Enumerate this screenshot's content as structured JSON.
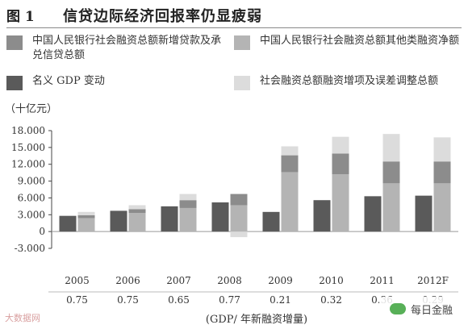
{
  "figure_label": "图 1",
  "title": "信贷边际经济回报率仍显疲弱",
  "unit_label": "（十亿元）",
  "watermark": "大数据网",
  "brand": {
    "text": "每日金融",
    "icon": "wechat-bubble-icon"
  },
  "colors": {
    "new_loans": "#8c8c8c",
    "other_net": "#b4b4b4",
    "gdp_change": "#5a5a5a",
    "adjustment": "#dcdcdc"
  },
  "chart_data": {
    "type": "bar",
    "title": "信贷边际经济回报率仍显疲弱",
    "ylabel": "（十亿元）",
    "xlabel": "(GDP/ 年新融资增量)",
    "ylim": [
      -3000,
      18000
    ],
    "yticks": [
      "-3.000",
      "0",
      "3.000",
      "6.000",
      "9.000",
      "12.000",
      "15.000",
      "18.000"
    ],
    "grid": false,
    "legend_placement": "top",
    "categories": [
      "2005",
      "2006",
      "2007",
      "2008",
      "2009",
      "2010",
      "2011",
      "2012F"
    ],
    "ratios": [
      "0.75",
      "0.75",
      "0.65",
      "0.77",
      "0.21",
      "0.32",
      "0.36",
      "0.29"
    ],
    "series": [
      {
        "name": "名义 GDP 变动",
        "key": "gdp_change",
        "values": [
          2800,
          3700,
          4500,
          5200,
          3500,
          5600,
          6300,
          6400
        ]
      },
      {
        "name": "中国人民银行社会融资总额新增贷款及承兑信贷总额",
        "key": "new_loans",
        "values": [
          500,
          700,
          1400,
          2000,
          3000,
          3700,
          3900,
          3900
        ]
      },
      {
        "name": "中国人民银行社会融资总额其他类融资净额",
        "key": "other_net",
        "values": [
          2400,
          3300,
          4200,
          4700,
          10600,
          10200,
          8600,
          8600
        ]
      },
      {
        "name": "社会融资总额融资增项及误差调整总额",
        "key": "adjustment",
        "values": [
          600,
          700,
          1100,
          -1000,
          1600,
          3000,
          4900,
          4300
        ]
      }
    ]
  }
}
